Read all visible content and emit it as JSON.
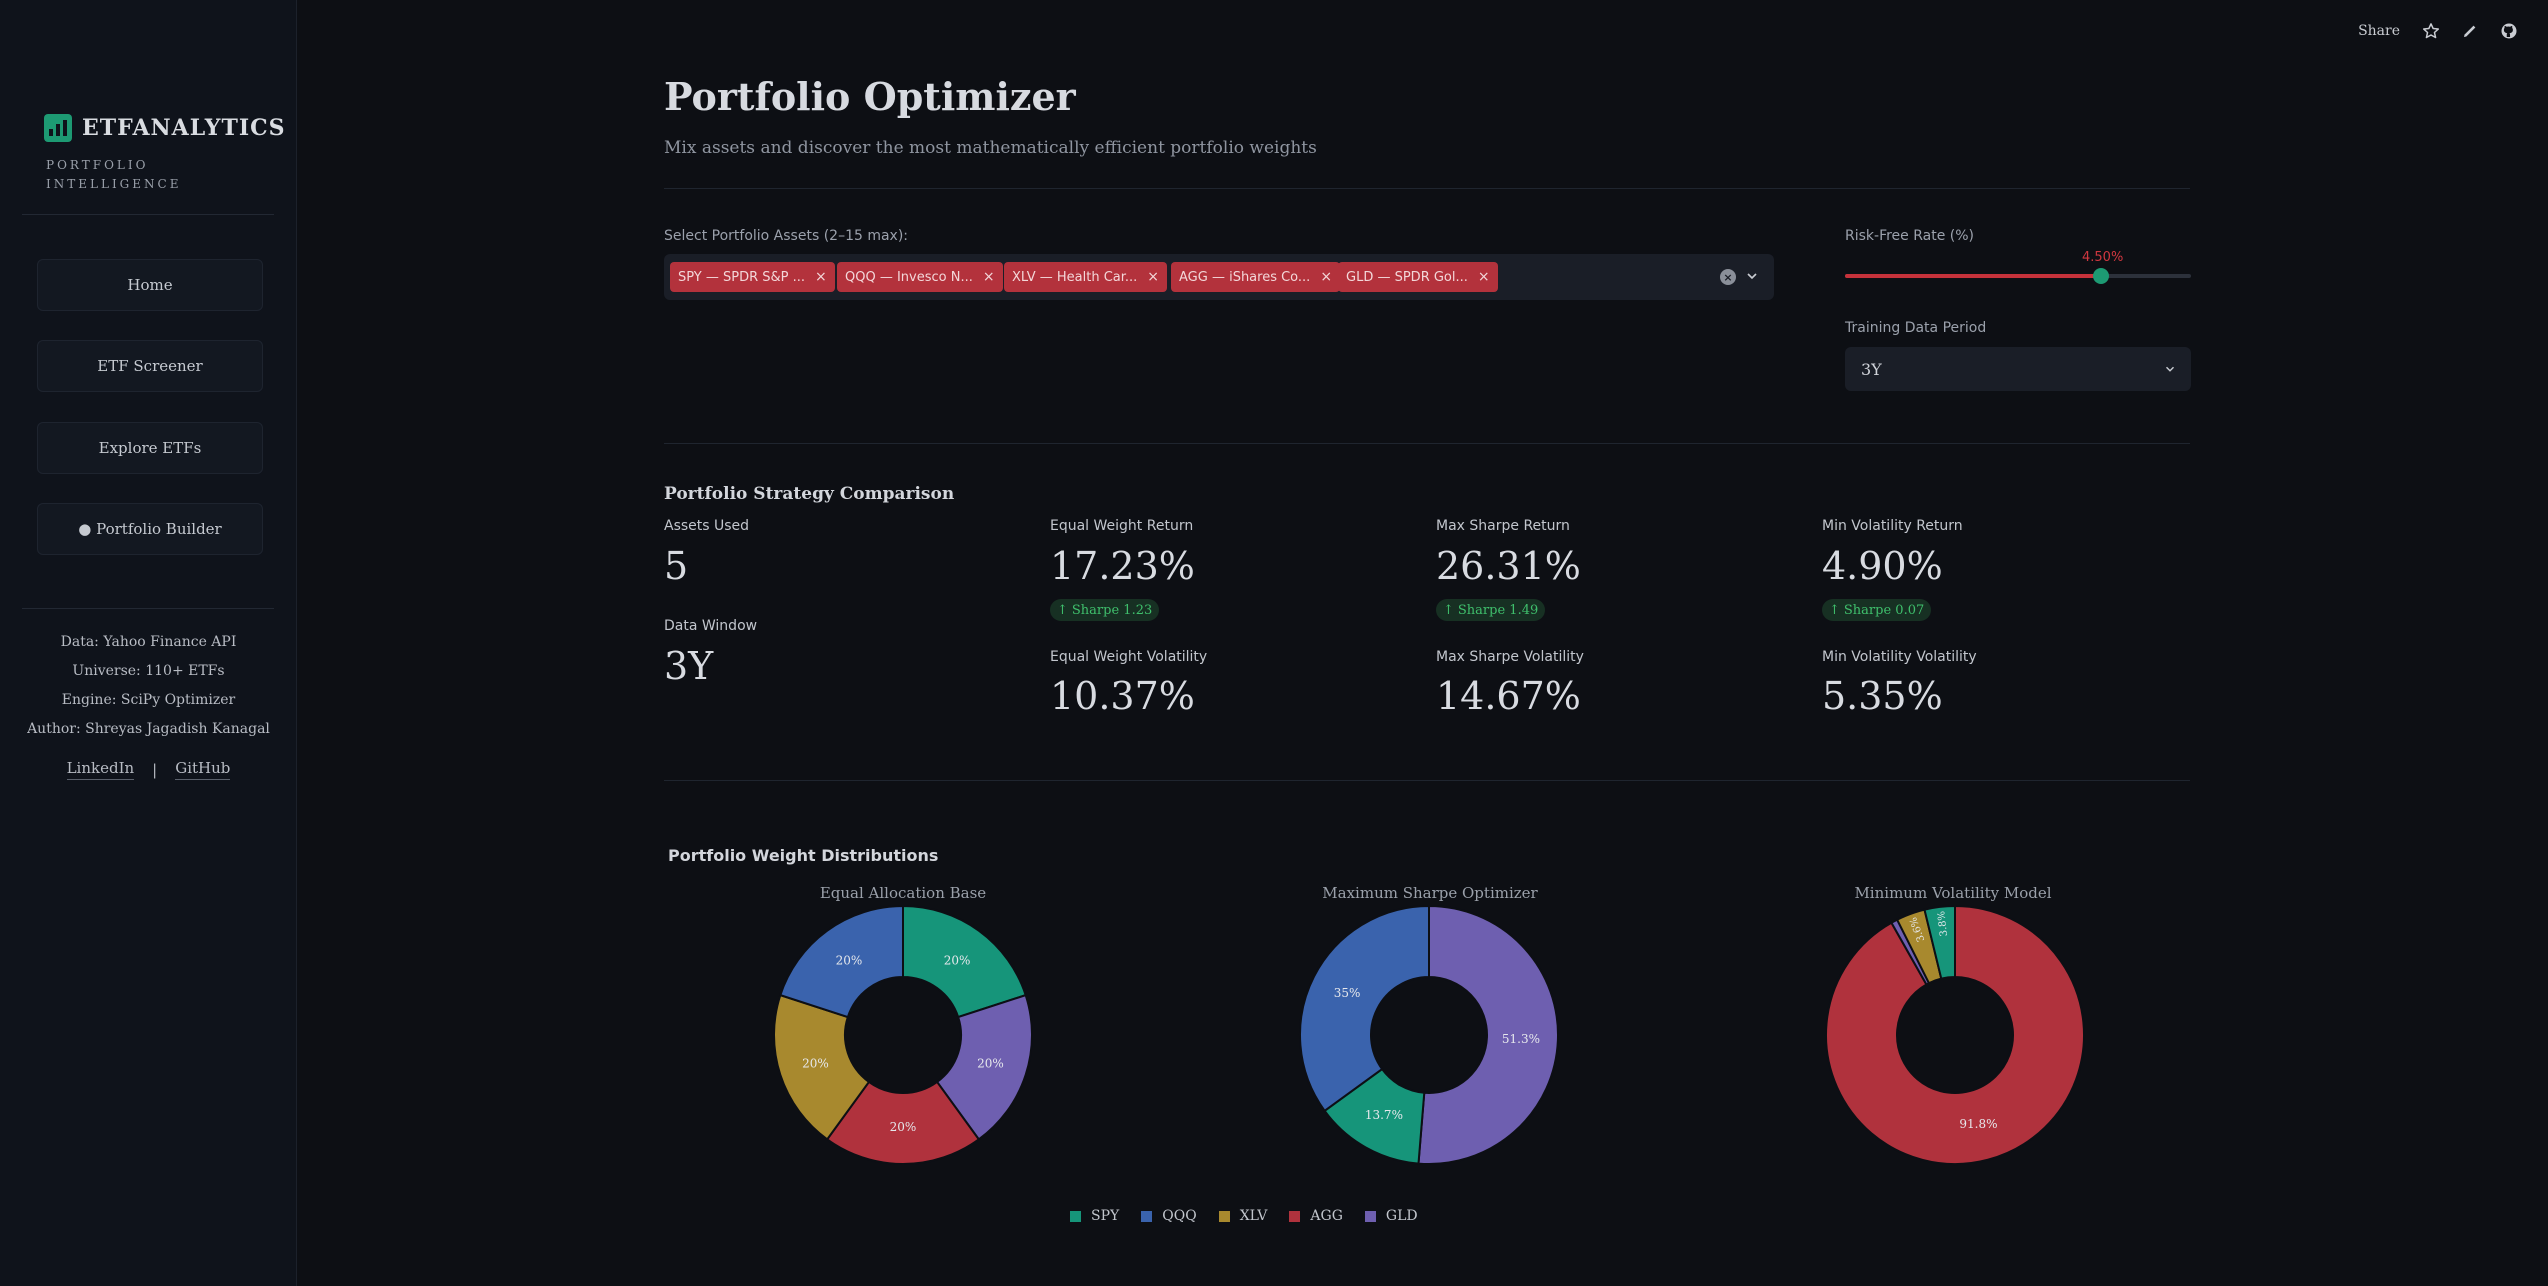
{
  "sidebar": {
    "brand": "ETFANALYTICS",
    "brand_sub": "PORTFOLIO INTELLIGENCE",
    "nav": [
      "Home",
      "ETF Screener",
      "Explore ETFs",
      "● Portfolio Builder"
    ],
    "meta": [
      "Data: Yahoo Finance API",
      "Universe: 110+ ETFs",
      "Engine: SciPy Optimizer",
      "Author: Shreyas Jagadish Kanagal"
    ],
    "links": [
      "LinkedIn",
      "GitHub"
    ],
    "separator": "|"
  },
  "toolbar": {
    "share": "Share"
  },
  "header": {
    "title": "Portfolio Optimizer",
    "subtitle": "Mix assets and discover the most mathematically efficient portfolio weights"
  },
  "inputs": {
    "assets_label": "Select Portfolio Assets (2–15 max):",
    "chips": [
      "SPY — SPDR S&P ...",
      "QQQ — Invesco N...",
      "XLV — Health Car...",
      "AGG — iShares Co...",
      "GLD — SPDR Gol..."
    ],
    "rfr_label": "Risk-Free Rate (%)",
    "rfr_value": "4.50%",
    "rfr_fraction": 0.74,
    "period_label": "Training Data Period",
    "period_value": "3Y"
  },
  "comparison": {
    "title": "Portfolio Strategy Comparison",
    "assets_used_label": "Assets Used",
    "assets_used": "5",
    "data_window_label": "Data Window",
    "data_window": "3Y",
    "ew_return_label": "Equal Weight Return",
    "ew_return": "17.23%",
    "ew_sharpe": "Sharpe 1.23",
    "ew_vol_label": "Equal Weight Volatility",
    "ew_vol": "10.37%",
    "ms_return_label": "Max Sharpe Return",
    "ms_return": "26.31%",
    "ms_sharpe": "Sharpe 1.49",
    "ms_vol_label": "Max Sharpe Volatility",
    "ms_vol": "14.67%",
    "mv_return_label": "Min Volatility Return",
    "mv_return": "4.90%",
    "mv_sharpe": "Sharpe 0.07",
    "mv_vol_label": "Min Volatility Volatility",
    "mv_vol": "5.35%"
  },
  "distributions": {
    "title": "Portfolio Weight Distributions"
  },
  "colors": {
    "SPY": "#16957a",
    "QQQ": "#3a63ad",
    "XLV": "#a8892e",
    "AGG": "#b0323d",
    "GLD": "#6e5fb0",
    "accent": "#1d9a73",
    "danger": "#c6323b"
  },
  "chart_data": [
    {
      "type": "pie",
      "title": "Equal Allocation Base",
      "categories": [
        "SPY",
        "GLD",
        "AGG",
        "XLV",
        "QQQ"
      ],
      "values": [
        20,
        20,
        20,
        20,
        20
      ],
      "labels": [
        "20%",
        "20%",
        "20%",
        "20%",
        "20%"
      ]
    },
    {
      "type": "pie",
      "title": "Maximum Sharpe Optimizer",
      "categories": [
        "GLD",
        "SPY",
        "QQQ"
      ],
      "values": [
        51.3,
        13.7,
        35
      ],
      "labels": [
        "51.3%",
        "13.7%",
        "35%"
      ]
    },
    {
      "type": "pie",
      "title": "Minimum Volatility Model",
      "categories": [
        "AGG",
        "GLD",
        "XLV",
        "SPY"
      ],
      "values": [
        91.8,
        0.8,
        3.6,
        3.8
      ],
      "labels": [
        "91.8%",
        "",
        "3.6%",
        "3.8%"
      ]
    }
  ],
  "legend": [
    "SPY",
    "QQQ",
    "XLV",
    "AGG",
    "GLD"
  ]
}
